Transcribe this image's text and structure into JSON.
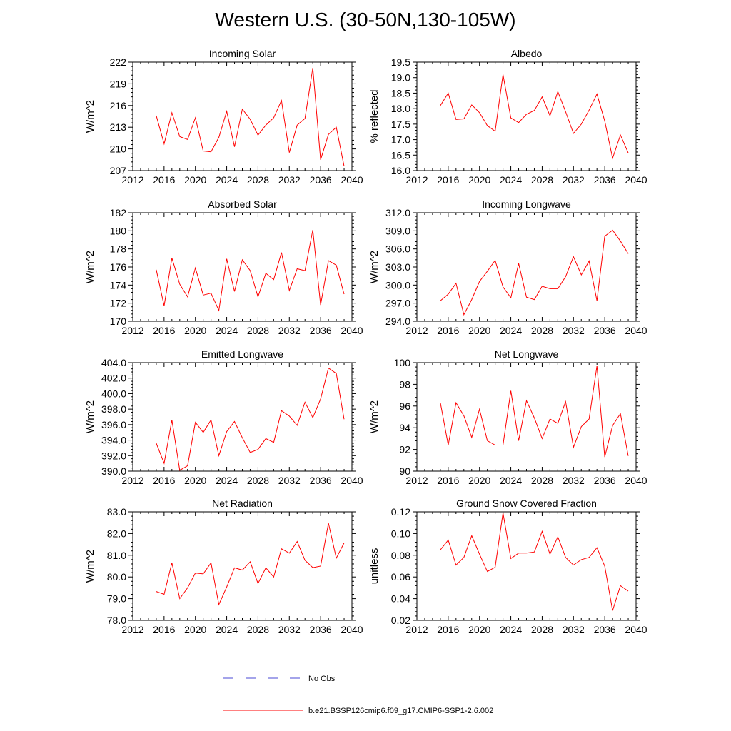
{
  "figure_title": "Western U.S. (30-50N,130-105W)",
  "legend": [
    {
      "label": "No Obs",
      "color": "#4a4ad6",
      "style": "dashed"
    },
    {
      "label": "b.e21.BSSP126cmip6.f09_g17.CMIP6-SSP1-2.6.002",
      "color": "#ff0000",
      "style": "solid"
    }
  ],
  "chart_data": [
    {
      "type": "line",
      "title": "Incoming Solar",
      "ylabel": "W/m^2",
      "xlim": [
        2012,
        2040
      ],
      "ylim": [
        207,
        222
      ],
      "xticks": [
        "2012",
        "2016",
        "2020",
        "2024",
        "2028",
        "2032",
        "2036",
        "2040"
      ],
      "yticks": [
        "207",
        "210",
        "213",
        "216",
        "219",
        "222"
      ],
      "series": [
        {
          "color": "#ff0000",
          "x": [
            2015,
            2016,
            2017,
            2018,
            2019,
            2020,
            2021,
            2022,
            2023,
            2024,
            2025,
            2026,
            2027,
            2028,
            2029,
            2030,
            2031,
            2032,
            2033,
            2034,
            2035,
            2036,
            2037,
            2038,
            2039
          ],
          "y": [
            214.6,
            210.7,
            215.0,
            211.7,
            211.3,
            214.3,
            209.7,
            209.6,
            211.6,
            215.2,
            210.3,
            215.5,
            214.1,
            211.9,
            213.3,
            214.3,
            216.7,
            209.5,
            213.3,
            214.2,
            221.2,
            208.5,
            212.0,
            213.0,
            207.6
          ]
        }
      ]
    },
    {
      "type": "line",
      "title": "Albedo",
      "ylabel": "% reflected",
      "xlim": [
        2012,
        2040
      ],
      "ylim": [
        16.0,
        19.5
      ],
      "xticks": [
        "2012",
        "2016",
        "2020",
        "2024",
        "2028",
        "2032",
        "2036",
        "2040"
      ],
      "yticks": [
        "16.0",
        "16.5",
        "17.0",
        "17.5",
        "18.0",
        "18.5",
        "19.0",
        "19.5"
      ],
      "series": [
        {
          "color": "#ff0000",
          "x": [
            2015,
            2016,
            2017,
            2018,
            2019,
            2020,
            2021,
            2022,
            2023,
            2024,
            2025,
            2026,
            2027,
            2028,
            2029,
            2030,
            2031,
            2032,
            2033,
            2034,
            2035,
            2036,
            2037,
            2038,
            2039
          ],
          "y": [
            18.1,
            18.5,
            17.65,
            17.67,
            18.12,
            17.87,
            17.45,
            17.27,
            19.1,
            17.7,
            17.55,
            17.82,
            17.94,
            18.38,
            17.77,
            18.55,
            17.9,
            17.2,
            17.5,
            17.95,
            18.47,
            17.6,
            16.4,
            17.15,
            16.57
          ]
        }
      ]
    },
    {
      "type": "line",
      "title": "Absorbed Solar",
      "ylabel": "W/m^2",
      "xlim": [
        2012,
        2040
      ],
      "ylim": [
        170,
        182
      ],
      "xticks": [
        "2012",
        "2016",
        "2020",
        "2024",
        "2028",
        "2032",
        "2036",
        "2040"
      ],
      "yticks": [
        "170",
        "172",
        "174",
        "176",
        "178",
        "180",
        "182"
      ],
      "series": [
        {
          "color": "#ff0000",
          "x": [
            2015,
            2016,
            2017,
            2018,
            2019,
            2020,
            2021,
            2022,
            2023,
            2024,
            2025,
            2026,
            2027,
            2028,
            2029,
            2030,
            2031,
            2032,
            2033,
            2034,
            2035,
            2036,
            2037,
            2038,
            2039
          ],
          "y": [
            175.7,
            171.7,
            177.0,
            174.1,
            172.7,
            175.9,
            172.9,
            173.1,
            171.2,
            176.9,
            173.3,
            176.8,
            175.6,
            172.7,
            175.3,
            174.6,
            177.6,
            173.4,
            175.8,
            175.6,
            180.1,
            171.8,
            176.7,
            176.2,
            173.0
          ]
        }
      ]
    },
    {
      "type": "line",
      "title": "Incoming Longwave",
      "ylabel": "W/m^2",
      "xlim": [
        2012,
        2040
      ],
      "ylim": [
        294.0,
        312.0
      ],
      "xticks": [
        "2012",
        "2016",
        "2020",
        "2024",
        "2028",
        "2032",
        "2036",
        "2040"
      ],
      "yticks": [
        "294.0",
        "297.0",
        "300.0",
        "303.0",
        "306.0",
        "309.0",
        "312.0"
      ],
      "series": [
        {
          "color": "#ff0000",
          "x": [
            2015,
            2016,
            2017,
            2018,
            2019,
            2020,
            2021,
            2022,
            2023,
            2024,
            2025,
            2026,
            2027,
            2028,
            2029,
            2030,
            2031,
            2032,
            2033,
            2034,
            2035,
            2036,
            2037,
            2038,
            2039
          ],
          "y": [
            297.4,
            298.5,
            300.3,
            295.1,
            297.6,
            300.6,
            302.3,
            304.1,
            299.7,
            297.9,
            303.6,
            298.0,
            297.6,
            299.8,
            299.4,
            299.4,
            301.4,
            304.7,
            301.7,
            304.0,
            297.4,
            308.1,
            309.1,
            307.3,
            305.2
          ]
        }
      ]
    },
    {
      "type": "line",
      "title": "Emitted Longwave",
      "ylabel": "W/m^2",
      "xlim": [
        2012,
        2040
      ],
      "ylim": [
        390.0,
        404.0
      ],
      "xticks": [
        "2012",
        "2016",
        "2020",
        "2024",
        "2028",
        "2032",
        "2036",
        "2040"
      ],
      "yticks": [
        "390.0",
        "392.0",
        "394.0",
        "396.0",
        "398.0",
        "400.0",
        "402.0",
        "404.0"
      ],
      "series": [
        {
          "color": "#ff0000",
          "x": [
            2015,
            2016,
            2017,
            2018,
            2019,
            2020,
            2021,
            2022,
            2023,
            2024,
            2025,
            2026,
            2027,
            2028,
            2029,
            2030,
            2031,
            2032,
            2033,
            2034,
            2035,
            2036,
            2037,
            2038,
            2039
          ],
          "y": [
            393.6,
            391.0,
            396.6,
            390.1,
            390.7,
            396.3,
            395.0,
            396.6,
            392.0,
            395.1,
            396.4,
            394.3,
            392.4,
            392.8,
            394.2,
            393.7,
            397.8,
            397.1,
            395.9,
            398.9,
            396.9,
            399.3,
            403.3,
            402.6,
            396.7
          ]
        }
      ]
    },
    {
      "type": "line",
      "title": "Net Longwave",
      "ylabel": "W/m^2",
      "xlim": [
        2012,
        2040
      ],
      "ylim": [
        90,
        100
      ],
      "xticks": [
        "2012",
        "2016",
        "2020",
        "2024",
        "2028",
        "2032",
        "2036",
        "2040"
      ],
      "yticks": [
        "90",
        "92",
        "94",
        "96",
        "98",
        "100"
      ],
      "series": [
        {
          "color": "#ff0000",
          "x": [
            2015,
            2016,
            2017,
            2018,
            2019,
            2020,
            2021,
            2022,
            2023,
            2024,
            2025,
            2026,
            2027,
            2028,
            2029,
            2030,
            2031,
            2032,
            2033,
            2034,
            2035,
            2036,
            2037,
            2038,
            2039
          ],
          "y": [
            96.3,
            92.4,
            96.3,
            95.1,
            93.1,
            95.7,
            92.8,
            92.4,
            92.4,
            97.4,
            92.8,
            96.5,
            94.9,
            93.0,
            94.8,
            94.4,
            96.4,
            92.2,
            94.1,
            94.8,
            99.7,
            91.3,
            94.2,
            95.3,
            91.4
          ]
        }
      ]
    },
    {
      "type": "line",
      "title": "Net Radiation",
      "ylabel": "W/m^2",
      "xlim": [
        2012,
        2040
      ],
      "ylim": [
        78.0,
        83.0
      ],
      "xticks": [
        "2012",
        "2016",
        "2020",
        "2024",
        "2028",
        "2032",
        "2036",
        "2040"
      ],
      "yticks": [
        "78.0",
        "79.0",
        "80.0",
        "81.0",
        "82.0",
        "83.0"
      ],
      "series": [
        {
          "color": "#ff0000",
          "x": [
            2015,
            2016,
            2017,
            2018,
            2019,
            2020,
            2021,
            2022,
            2023,
            2024,
            2025,
            2026,
            2027,
            2028,
            2029,
            2030,
            2031,
            2032,
            2033,
            2034,
            2035,
            2036,
            2037,
            2038,
            2039
          ],
          "y": [
            79.33,
            79.2,
            80.65,
            79.0,
            79.5,
            80.18,
            80.14,
            80.65,
            78.73,
            79.54,
            80.42,
            80.32,
            80.7,
            79.7,
            80.42,
            80.0,
            81.3,
            81.1,
            81.63,
            80.77,
            80.43,
            80.5,
            82.48,
            80.87,
            81.57
          ]
        }
      ]
    },
    {
      "type": "line",
      "title": "Ground Snow Covered Fraction",
      "ylabel": "unitless",
      "xlim": [
        2012,
        2040
      ],
      "ylim": [
        0.02,
        0.12
      ],
      "xticks": [
        "2012",
        "2016",
        "2020",
        "2024",
        "2028",
        "2032",
        "2036",
        "2040"
      ],
      "yticks": [
        "0.02",
        "0.04",
        "0.06",
        "0.08",
        "0.10",
        "0.12"
      ],
      "series": [
        {
          "color": "#ff0000",
          "x": [
            2015,
            2016,
            2017,
            2018,
            2019,
            2020,
            2021,
            2022,
            2023,
            2024,
            2025,
            2026,
            2027,
            2028,
            2029,
            2030,
            2031,
            2032,
            2033,
            2034,
            2035,
            2036,
            2037,
            2038,
            2039
          ],
          "y": [
            0.085,
            0.094,
            0.071,
            0.078,
            0.098,
            0.081,
            0.065,
            0.069,
            0.119,
            0.077,
            0.082,
            0.082,
            0.083,
            0.102,
            0.081,
            0.097,
            0.078,
            0.071,
            0.076,
            0.078,
            0.087,
            0.07,
            0.029,
            0.052,
            0.047
          ]
        }
      ]
    }
  ]
}
